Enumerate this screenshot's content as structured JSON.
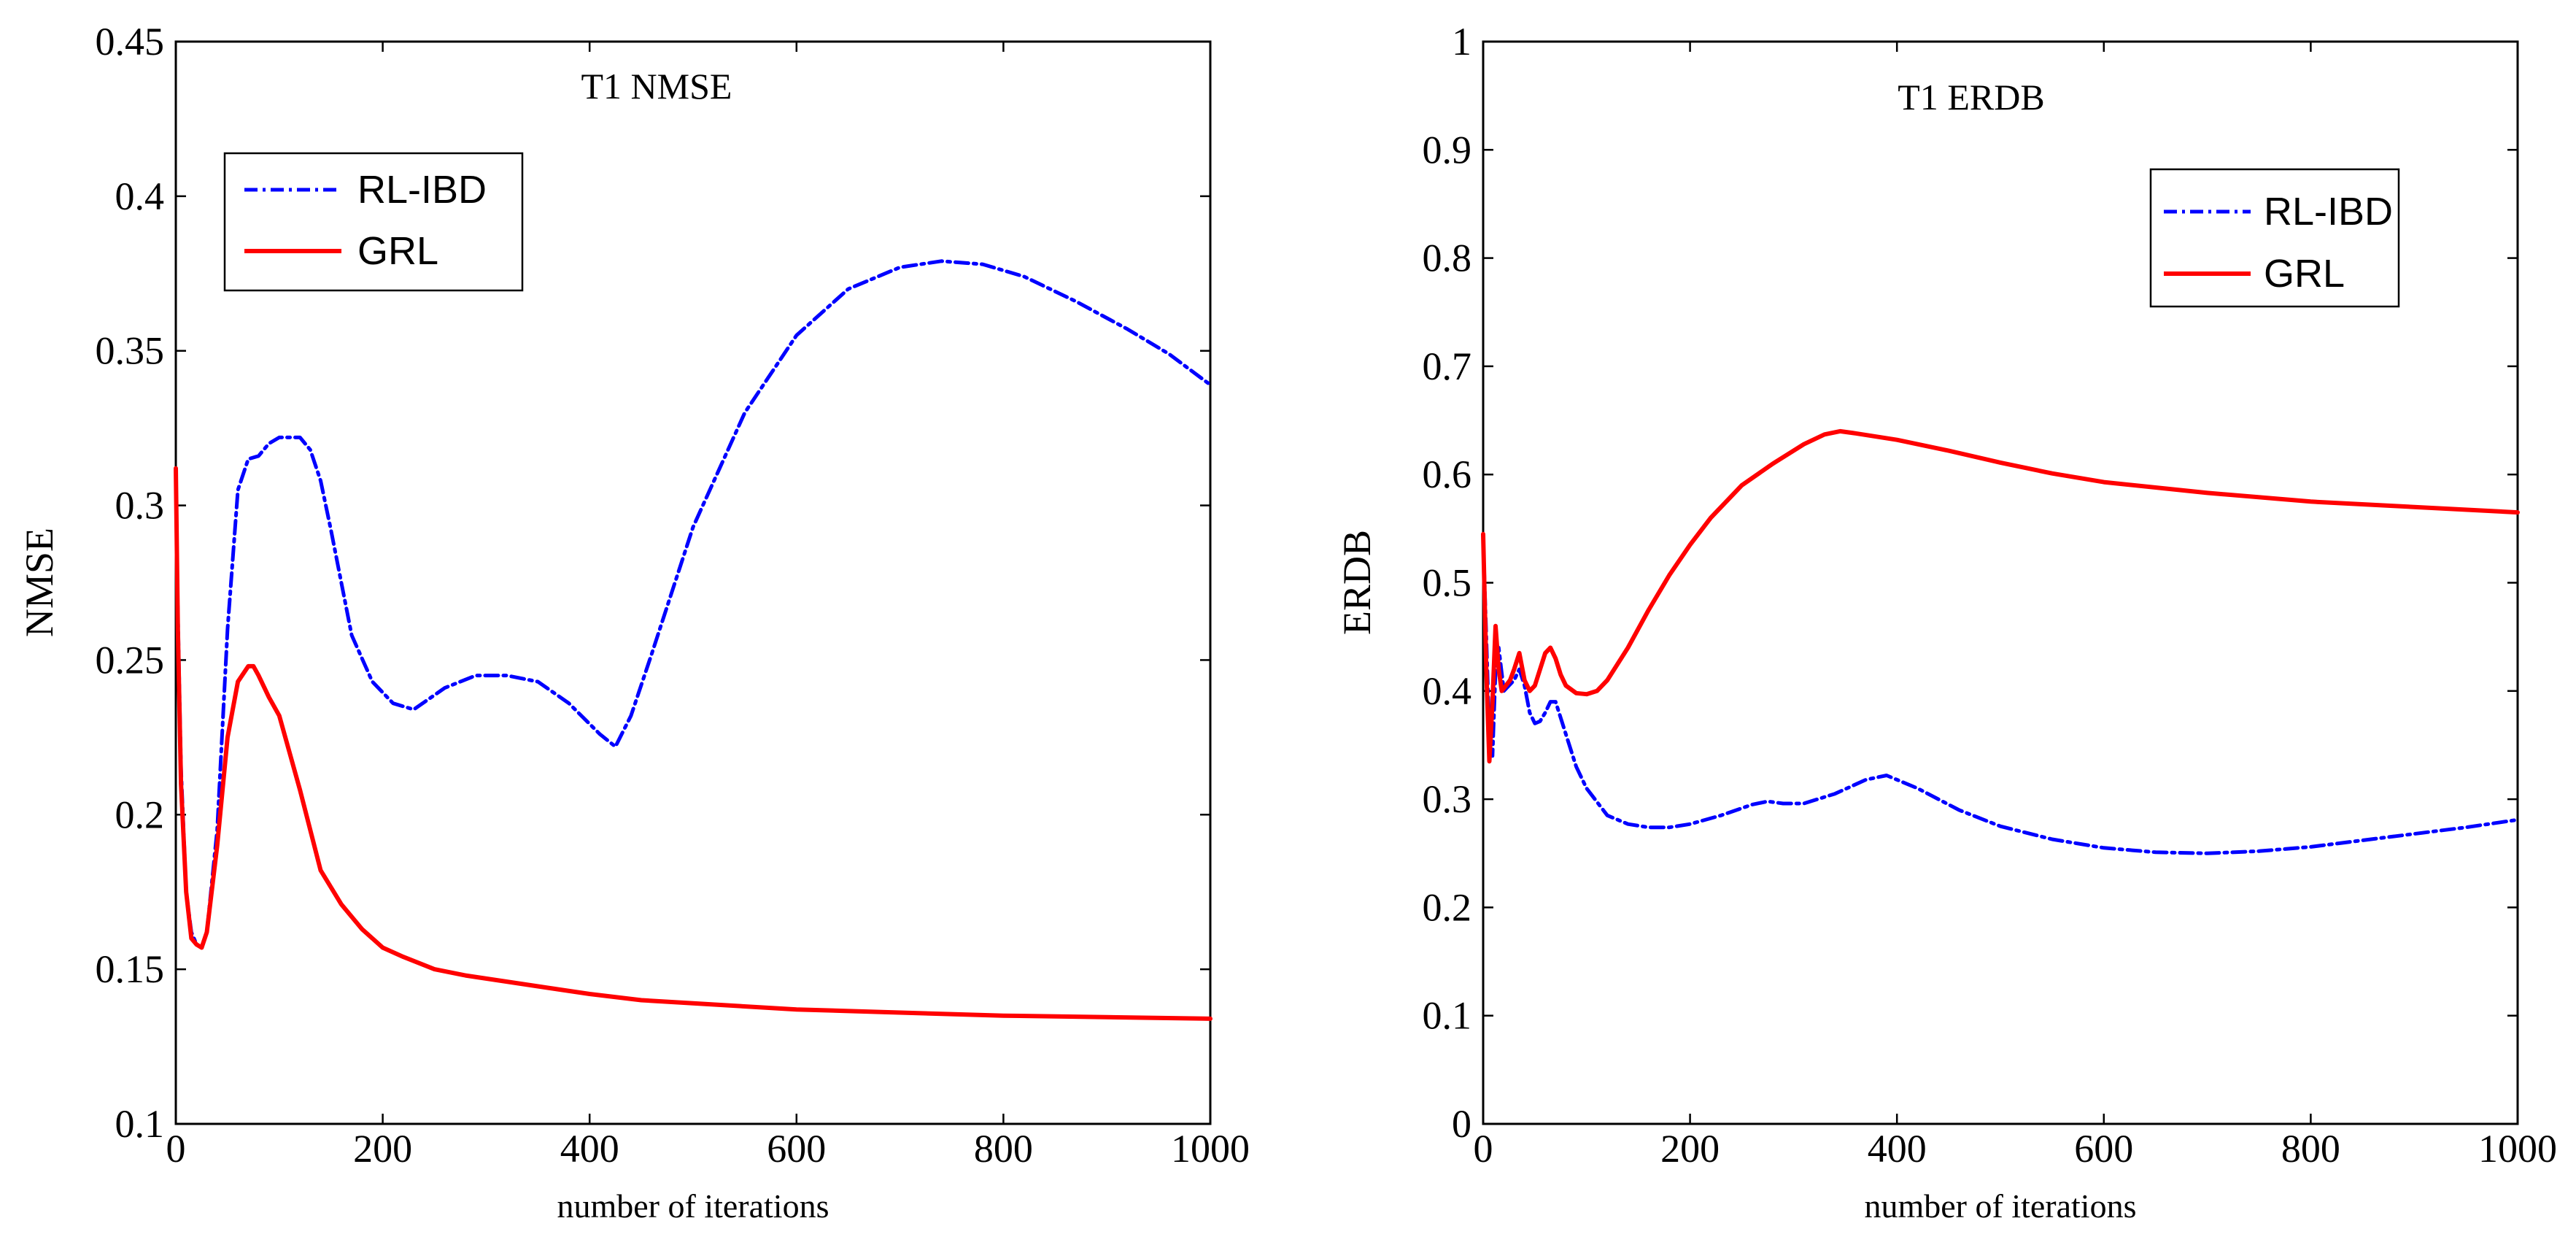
{
  "chart_data": [
    {
      "type": "line",
      "title": "T1 NMSE",
      "xlabel": "number of iterations",
      "ylabel": "NMSE",
      "xlim": [
        0,
        1000
      ],
      "ylim": [
        0.1,
        0.45
      ],
      "xticks": [
        0,
        200,
        400,
        600,
        800,
        1000
      ],
      "yticks": [
        0.1,
        0.15,
        0.2,
        0.25,
        0.3,
        0.35,
        0.4,
        0.45
      ],
      "ytick_labels": [
        "0.1",
        "0.15",
        "0.2",
        "0.25",
        "0.3",
        "0.35",
        "0.4",
        "0.45"
      ],
      "legend": {
        "location": "top-left"
      },
      "series": [
        {
          "name": "RL-IBD",
          "color": "#0000ff",
          "style": "dashdot",
          "x": [
            0,
            2,
            5,
            10,
            15,
            20,
            25,
            30,
            40,
            50,
            60,
            70,
            80,
            90,
            100,
            110,
            120,
            130,
            140,
            150,
            170,
            190,
            210,
            230,
            260,
            290,
            320,
            350,
            380,
            410,
            425,
            440,
            460,
            500,
            550,
            600,
            650,
            700,
            740,
            780,
            820,
            870,
            920,
            960,
            1000
          ],
          "y": [
            0.31,
            0.265,
            0.215,
            0.175,
            0.162,
            0.158,
            0.157,
            0.162,
            0.195,
            0.26,
            0.305,
            0.315,
            0.316,
            0.32,
            0.322,
            0.322,
            0.322,
            0.318,
            0.308,
            0.292,
            0.258,
            0.243,
            0.236,
            0.234,
            0.241,
            0.245,
            0.245,
            0.243,
            0.236,
            0.226,
            0.222,
            0.232,
            0.252,
            0.293,
            0.33,
            0.355,
            0.37,
            0.377,
            0.379,
            0.378,
            0.374,
            0.366,
            0.357,
            0.349,
            0.339
          ]
        },
        {
          "name": "GRL",
          "color": "#ff0000",
          "style": "solid",
          "x": [
            0,
            2,
            5,
            10,
            15,
            20,
            25,
            30,
            40,
            50,
            60,
            70,
            75,
            80,
            90,
            100,
            110,
            120,
            140,
            160,
            180,
            200,
            220,
            250,
            280,
            320,
            360,
            400,
            450,
            500,
            600,
            700,
            800,
            900,
            1000
          ],
          "y": [
            0.312,
            0.26,
            0.21,
            0.175,
            0.16,
            0.158,
            0.157,
            0.162,
            0.19,
            0.225,
            0.243,
            0.248,
            0.248,
            0.245,
            0.238,
            0.232,
            0.22,
            0.208,
            0.182,
            0.171,
            0.163,
            0.157,
            0.154,
            0.15,
            0.148,
            0.146,
            0.144,
            0.142,
            0.14,
            0.139,
            0.137,
            0.136,
            0.135,
            0.1345,
            0.134
          ]
        }
      ]
    },
    {
      "type": "line",
      "title": "T1 ERDB",
      "xlabel": "number of iterations",
      "ylabel": "ERDB",
      "xlim": [
        0,
        1000
      ],
      "ylim": [
        0,
        1
      ],
      "xticks": [
        0,
        200,
        400,
        600,
        800,
        1000
      ],
      "yticks": [
        0,
        0.1,
        0.2,
        0.3,
        0.4,
        0.5,
        0.6,
        0.7,
        0.8,
        0.9,
        1
      ],
      "ytick_labels": [
        "0",
        "0.1",
        "0.2",
        "0.3",
        "0.4",
        "0.5",
        "0.6",
        "0.7",
        "0.8",
        "0.9",
        "1"
      ],
      "legend": {
        "location": "top-right"
      },
      "series": [
        {
          "name": "RL-IBD",
          "color": "#0000ff",
          "style": "dashdot",
          "x": [
            0,
            3,
            6,
            9,
            12,
            15,
            20,
            25,
            30,
            35,
            40,
            45,
            50,
            55,
            60,
            65,
            70,
            80,
            90,
            100,
            120,
            140,
            160,
            180,
            200,
            230,
            260,
            275,
            290,
            310,
            340,
            370,
            390,
            420,
            460,
            500,
            550,
            600,
            650,
            700,
            750,
            800,
            850,
            900,
            950,
            1000
          ],
          "y": [
            0.54,
            0.45,
            0.36,
            0.34,
            0.42,
            0.44,
            0.4,
            0.405,
            0.41,
            0.42,
            0.405,
            0.38,
            0.37,
            0.372,
            0.38,
            0.39,
            0.39,
            0.36,
            0.33,
            0.31,
            0.285,
            0.277,
            0.274,
            0.274,
            0.277,
            0.285,
            0.295,
            0.298,
            0.296,
            0.296,
            0.305,
            0.318,
            0.322,
            0.31,
            0.29,
            0.275,
            0.263,
            0.255,
            0.251,
            0.25,
            0.252,
            0.256,
            0.262,
            0.268,
            0.274,
            0.281
          ]
        },
        {
          "name": "GRL",
          "color": "#ff0000",
          "style": "solid",
          "x": [
            0,
            3,
            6,
            9,
            12,
            15,
            18,
            22,
            26,
            30,
            35,
            40,
            45,
            50,
            55,
            60,
            65,
            70,
            75,
            80,
            90,
            100,
            110,
            120,
            140,
            160,
            180,
            200,
            220,
            250,
            280,
            310,
            330,
            345,
            360,
            400,
            450,
            500,
            550,
            600,
            700,
            800,
            900,
            1000
          ],
          "y": [
            0.545,
            0.42,
            0.335,
            0.39,
            0.46,
            0.42,
            0.4,
            0.405,
            0.41,
            0.42,
            0.435,
            0.41,
            0.4,
            0.405,
            0.42,
            0.435,
            0.44,
            0.43,
            0.415,
            0.405,
            0.398,
            0.397,
            0.4,
            0.41,
            0.44,
            0.475,
            0.507,
            0.535,
            0.56,
            0.59,
            0.61,
            0.628,
            0.637,
            0.64,
            0.638,
            0.632,
            0.622,
            0.611,
            0.601,
            0.593,
            0.583,
            0.575,
            0.57,
            0.565
          ]
        }
      ]
    }
  ]
}
